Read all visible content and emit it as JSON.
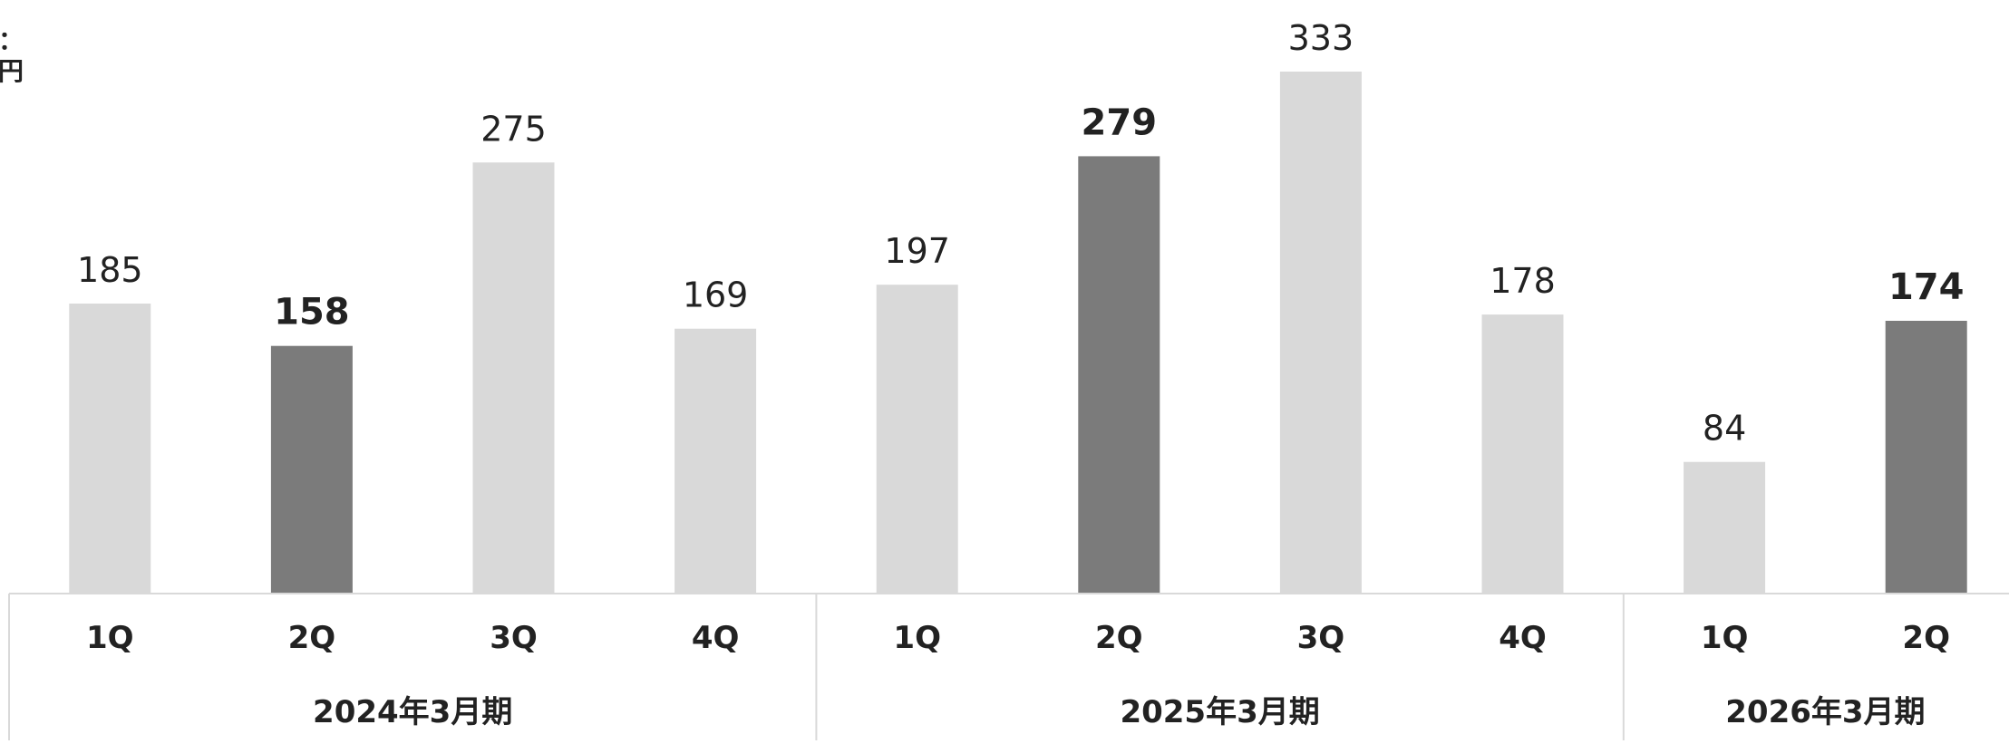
{
  "unit_label": "：\n円",
  "chart_data": {
    "type": "bar",
    "title": "",
    "xlabel": "",
    "ylabel": "",
    "ylim": [
      0,
      333
    ],
    "grid": false,
    "legend": "none",
    "groups": [
      {
        "label": "2024年3月期",
        "categories": [
          "1Q",
          "2Q",
          "3Q",
          "4Q"
        ]
      },
      {
        "label": "2025年3月期",
        "categories": [
          "1Q",
          "2Q",
          "3Q",
          "4Q"
        ]
      },
      {
        "label": "2026年3月期",
        "categories": [
          "1Q",
          "2Q"
        ]
      }
    ],
    "categories": [
      "1Q",
      "2Q",
      "3Q",
      "4Q",
      "1Q",
      "2Q",
      "3Q",
      "4Q",
      "1Q",
      "2Q"
    ],
    "values": [
      185,
      158,
      275,
      169,
      197,
      279,
      333,
      178,
      84,
      174
    ],
    "highlighted": [
      false,
      true,
      false,
      false,
      false,
      true,
      false,
      false,
      false,
      true
    ],
    "colors": {
      "normal": "#d9d9d9",
      "highlight": "#7b7b7b",
      "axis": "#d9d9d9",
      "text": "#222222"
    }
  }
}
